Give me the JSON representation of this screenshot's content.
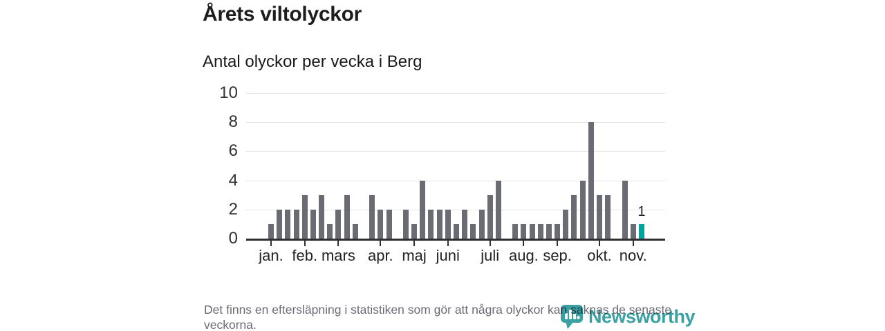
{
  "title": "Årets viltolyckor",
  "subtitle": "Antal olyckor per vecka i Berg",
  "footnote": "Det finns en eftersläpning i statistiken som gör att några olyckor kan saknas de senaste veckorna.",
  "branding": {
    "name": "Newsworthy",
    "icon": "newsworthy-speech-bubble-barchart-icon",
    "color": "#3aa0a1"
  },
  "colors": {
    "bar": "#6b6b73",
    "highlight": "#00a39d",
    "grid": "#e4e4e4",
    "axis": "#2f2f2f",
    "title_text": "#1d1d1d",
    "muted_text": "#6b6b75"
  },
  "chart_data": {
    "type": "bar",
    "title": "Årets viltolyckor",
    "subtitle": "Antal olyckor per vecka i Berg",
    "x_unit": "week",
    "n_weeks": 45,
    "values": [
      1,
      2,
      2,
      2,
      3,
      2,
      3,
      1,
      2,
      3,
      1,
      0,
      3,
      2,
      2,
      0,
      2,
      1,
      4,
      2,
      2,
      2,
      1,
      2,
      1,
      2,
      3,
      4,
      0,
      1,
      1,
      1,
      1,
      1,
      1,
      2,
      3,
      4,
      8,
      3,
      3,
      0,
      4,
      1,
      1
    ],
    "highlight": {
      "index": 44,
      "label": "1",
      "color": "#00a39d"
    },
    "ylim": [
      0,
      10
    ],
    "y_ticks": [
      0,
      2,
      4,
      6,
      8,
      10
    ],
    "grid": "horizontal",
    "legend": "none",
    "month_ticks": [
      {
        "label": "jan.",
        "index": 0
      },
      {
        "label": "feb.",
        "index": 4
      },
      {
        "label": "mars",
        "index": 8
      },
      {
        "label": "apr.",
        "index": 13
      },
      {
        "label": "maj",
        "index": 17
      },
      {
        "label": "juni",
        "index": 21
      },
      {
        "label": "juli",
        "index": 26
      },
      {
        "label": "aug.",
        "index": 30
      },
      {
        "label": "sep.",
        "index": 34
      },
      {
        "label": "okt.",
        "index": 39
      },
      {
        "label": "nov.",
        "index": 43
      }
    ]
  }
}
